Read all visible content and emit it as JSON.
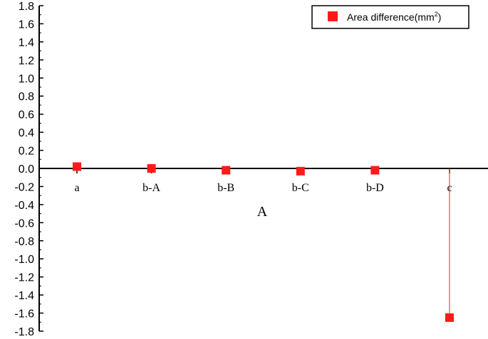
{
  "chart_data": {
    "type": "scatter",
    "categories": [
      "a",
      "b-A",
      "b-B",
      "b-C",
      "b-D",
      "c"
    ],
    "series": [
      {
        "name": "Area difference(mm2)",
        "legend_text": "Area difference(mm",
        "legend_sup": "2",
        "legend_suffix": ")",
        "values": [
          0.02,
          0.0,
          -0.02,
          -0.03,
          -0.02,
          -1.65
        ],
        "color": "#ff1a1a",
        "drop_lines": true
      }
    ],
    "xlabel": "A",
    "ylabel": "",
    "ylim": [
      -1.8,
      1.8
    ],
    "yticks": [
      "1.8",
      "1.6",
      "1.4",
      "1.2",
      "1.0",
      "0.8",
      "0.6",
      "0.4",
      "0.2",
      "0.0",
      "-0.2",
      "-0.4",
      "-0.6",
      "-0.8",
      "-1.0",
      "-1.2",
      "-1.4",
      "-1.6",
      "-1.8"
    ],
    "ytick_values": [
      1.8,
      1.6,
      1.4,
      1.2,
      1.0,
      0.8,
      0.6,
      0.4,
      0.2,
      0.0,
      -0.2,
      -0.4,
      -0.6,
      -0.8,
      -1.0,
      -1.2,
      -1.4,
      -1.6,
      -1.8
    ],
    "legend_position": "top-right",
    "grid": false
  }
}
